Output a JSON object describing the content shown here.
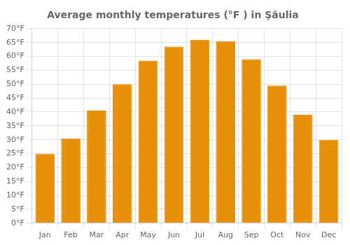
{
  "chart_data": {
    "type": "bar",
    "title": "Average monthly temperatures (°F ) in Şăulia",
    "categories": [
      "Jan",
      "Feb",
      "Mar",
      "Apr",
      "May",
      "Jun",
      "Jul",
      "Aug",
      "Sep",
      "Oct",
      "Nov",
      "Dec"
    ],
    "values": [
      25,
      30.5,
      40.5,
      50,
      58.5,
      63.5,
      66,
      65.5,
      59,
      49.5,
      39,
      30
    ],
    "color": "#E8900A",
    "ylim": [
      0,
      70
    ],
    "yticks": [
      {
        "value": 0,
        "label": "0°F"
      },
      {
        "value": 5,
        "label": "5°F"
      },
      {
        "value": 10,
        "label": "10°F"
      },
      {
        "value": 15,
        "label": "15°F"
      },
      {
        "value": 20,
        "label": "20°F"
      },
      {
        "value": 25,
        "label": "25°F"
      },
      {
        "value": 30,
        "label": "30°F"
      },
      {
        "value": 35,
        "label": "35°F"
      },
      {
        "value": 40,
        "label": "40°F"
      },
      {
        "value": 45,
        "label": "45°F"
      },
      {
        "value": 50,
        "label": "50°F"
      },
      {
        "value": 55,
        "label": "55°F"
      },
      {
        "value": 60,
        "label": "60°F"
      },
      {
        "value": 65,
        "label": "65°F"
      },
      {
        "value": 70,
        "label": "70°F"
      }
    ],
    "grid": true
  }
}
